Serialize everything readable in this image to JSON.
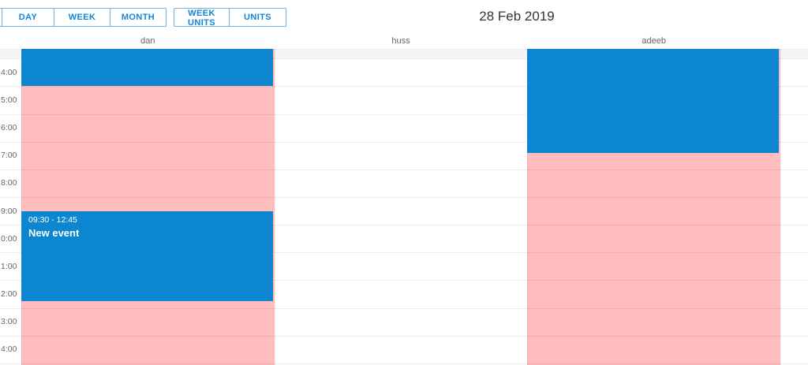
{
  "toolbar": {
    "title": "28 Feb 2019",
    "buttons_group1": [
      {
        "label": ""
      },
      {
        "label": "DAY"
      },
      {
        "label": "WEEK"
      },
      {
        "label": "MONTH"
      }
    ],
    "buttons_group2": [
      {
        "label": "WEEK UNITS"
      },
      {
        "label": "UNITS"
      }
    ]
  },
  "colors": {
    "event_blue": "#0c86d0",
    "busy_pink": "#ffbdbe",
    "button_blue": "#1283d6",
    "label_gray": "#666666"
  },
  "grid": {
    "time_labels": [
      "4:00",
      "5:00",
      "6:00",
      "7:00",
      "8:00",
      "9:00",
      "0:00",
      "1:00",
      "2:00",
      "3:00",
      "4:00"
    ],
    "first_label_hour": 4,
    "last_gridline_hour": 15,
    "columns": [
      {
        "name": "dan",
        "busy_background": true,
        "events": [
          {
            "start": "03:30",
            "end": "05:00",
            "time_text": "",
            "title": ""
          },
          {
            "start": "09:30",
            "end": "12:45",
            "time_text": "09:30 - 12:45",
            "title": "New event"
          }
        ]
      },
      {
        "name": "huss",
        "busy_background": false,
        "events": []
      },
      {
        "name": "adeeb",
        "busy_background": true,
        "events": [
          {
            "start": "03:30",
            "end": "07:24",
            "time_text": "",
            "title": ""
          }
        ]
      }
    ]
  }
}
